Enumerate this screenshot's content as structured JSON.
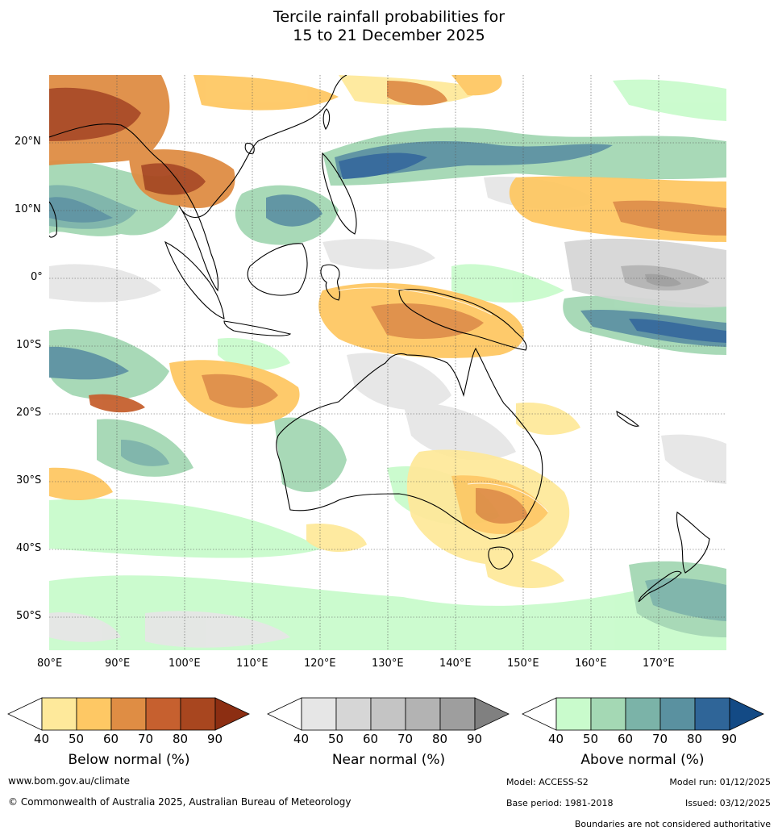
{
  "title": {
    "line1": "Tercile rainfall probabilities for",
    "line2": "15 to 21 December 2025"
  },
  "map": {
    "lat_labels": [
      "20°N",
      "10°N",
      "0°",
      "10°S",
      "20°S",
      "30°S",
      "40°S",
      "50°S"
    ],
    "lon_labels": [
      "80°E",
      "90°E",
      "100°E",
      "110°E",
      "120°E",
      "130°E",
      "140°E",
      "150°E",
      "160°E",
      "170°E"
    ],
    "extent": {
      "lon": [
        80,
        180
      ],
      "lat": [
        -55,
        30
      ]
    }
  },
  "colorbars": [
    {
      "label": "Below normal (%)",
      "ticks": [
        "40",
        "50",
        "60",
        "70",
        "80",
        "90"
      ],
      "colors": [
        "#fee99b",
        "#fec864",
        "#df8d44",
        "#c6602f",
        "#a8461f",
        "#8c2e12"
      ]
    },
    {
      "label": "Near normal (%)",
      "ticks": [
        "40",
        "50",
        "60",
        "70",
        "80",
        "90"
      ],
      "colors": [
        "#e6e6e6",
        "#d6d6d6",
        "#c4c4c4",
        "#b3b3b3",
        "#9e9e9e",
        "#808080"
      ]
    },
    {
      "label": "Above normal (%)",
      "ticks": [
        "40",
        "50",
        "60",
        "70",
        "80",
        "90"
      ],
      "colors": [
        "#c9fbcc",
        "#a4d8b4",
        "#7bb3a8",
        "#5a91a0",
        "#2f6598",
        "#134a85"
      ]
    }
  ],
  "footer": {
    "website": "www.bom.gov.au/climate",
    "copyright": "© Commonwealth of Australia 2025, Australian Bureau of Meteorology",
    "model": "Model: ACCESS-S2",
    "model_run": "Model run: 01/12/2025",
    "base_period": "Base period: 1981-2018",
    "issued": "Issued: 03/12/2025",
    "disclaimer": "Boundaries are not considered authoritative"
  }
}
